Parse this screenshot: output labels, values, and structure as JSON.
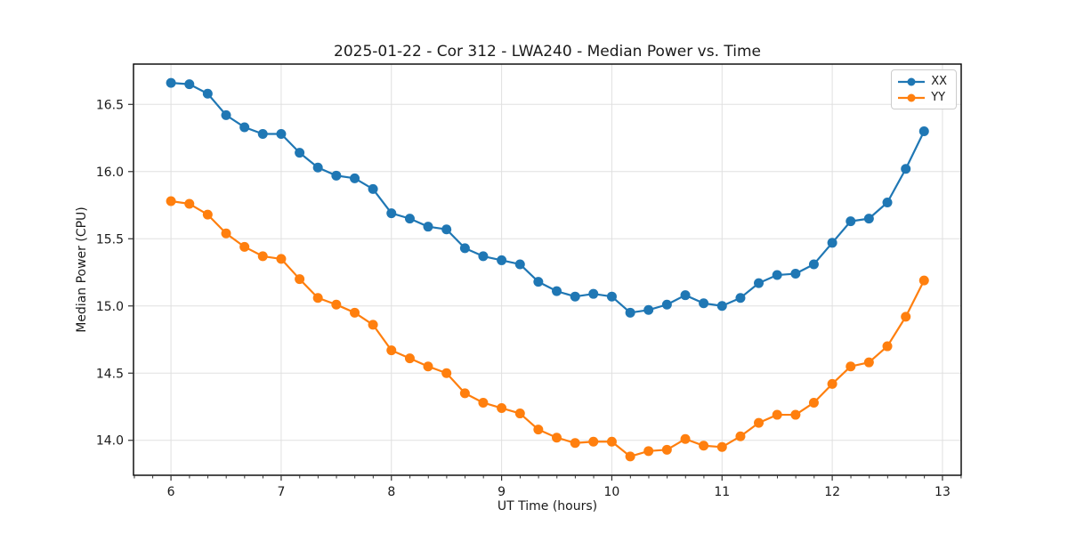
{
  "chart_data": {
    "type": "line",
    "title": "2025-01-22 - Cor 312 - LWA240 - Median Power vs. Time",
    "xlabel": "UT Time (hours)",
    "ylabel": "Median Power (CPU)",
    "xlim": [
      5.66,
      13.17
    ],
    "ylim": [
      13.74,
      16.8
    ],
    "xticks": [
      6,
      7,
      8,
      9,
      10,
      11,
      12,
      13
    ],
    "xtick_labels": [
      "6",
      "7",
      "8",
      "9",
      "10",
      "11",
      "12",
      "13"
    ],
    "x_minor_step": 0.1667,
    "yticks": [
      14.0,
      14.5,
      15.0,
      15.5,
      16.0,
      16.5
    ],
    "ytick_labels": [
      "14.0",
      "14.5",
      "15.0",
      "15.5",
      "16.0",
      "16.5"
    ],
    "grid": true,
    "legend_position": "upper right",
    "x": [
      6,
      6.167,
      6.333,
      6.5,
      6.667,
      6.833,
      7,
      7.167,
      7.333,
      7.5,
      7.667,
      7.833,
      8,
      8.167,
      8.333,
      8.5,
      8.667,
      8.833,
      9,
      9.167,
      9.333,
      9.5,
      9.667,
      9.833,
      10,
      10.167,
      10.333,
      10.5,
      10.667,
      10.833,
      11,
      11.167,
      11.333,
      11.5,
      11.667,
      11.833,
      12,
      12.167,
      12.333,
      12.5,
      12.667,
      12.833
    ],
    "series": [
      {
        "name": "XX",
        "color": "#1f77b4",
        "values": [
          16.66,
          16.65,
          16.58,
          16.42,
          16.33,
          16.28,
          16.28,
          16.14,
          16.03,
          15.97,
          15.95,
          15.87,
          15.69,
          15.65,
          15.59,
          15.57,
          15.43,
          15.37,
          15.34,
          15.31,
          15.18,
          15.11,
          15.07,
          15.09,
          15.07,
          14.95,
          14.97,
          15.01,
          15.08,
          15.02,
          15.0,
          15.06,
          15.17,
          15.23,
          15.24,
          15.31,
          15.47,
          15.63,
          15.65,
          15.77,
          16.02,
          16.3
        ]
      },
      {
        "name": "YY",
        "color": "#ff7f0e",
        "values": [
          15.78,
          15.76,
          15.68,
          15.54,
          15.44,
          15.37,
          15.35,
          15.2,
          15.06,
          15.01,
          14.95,
          14.86,
          14.67,
          14.61,
          14.55,
          14.5,
          14.35,
          14.28,
          14.24,
          14.2,
          14.08,
          14.02,
          13.98,
          13.99,
          13.99,
          13.88,
          13.92,
          13.93,
          14.01,
          13.96,
          13.95,
          14.03,
          14.13,
          14.19,
          14.19,
          14.28,
          14.42,
          14.55,
          14.58,
          14.7,
          14.92,
          15.19
        ]
      }
    ],
    "style": {
      "grid_color": "#e0e0e0",
      "spine_color": "#000000",
      "tick_color": "#333333",
      "text_color": "#1a1a1a"
    }
  }
}
